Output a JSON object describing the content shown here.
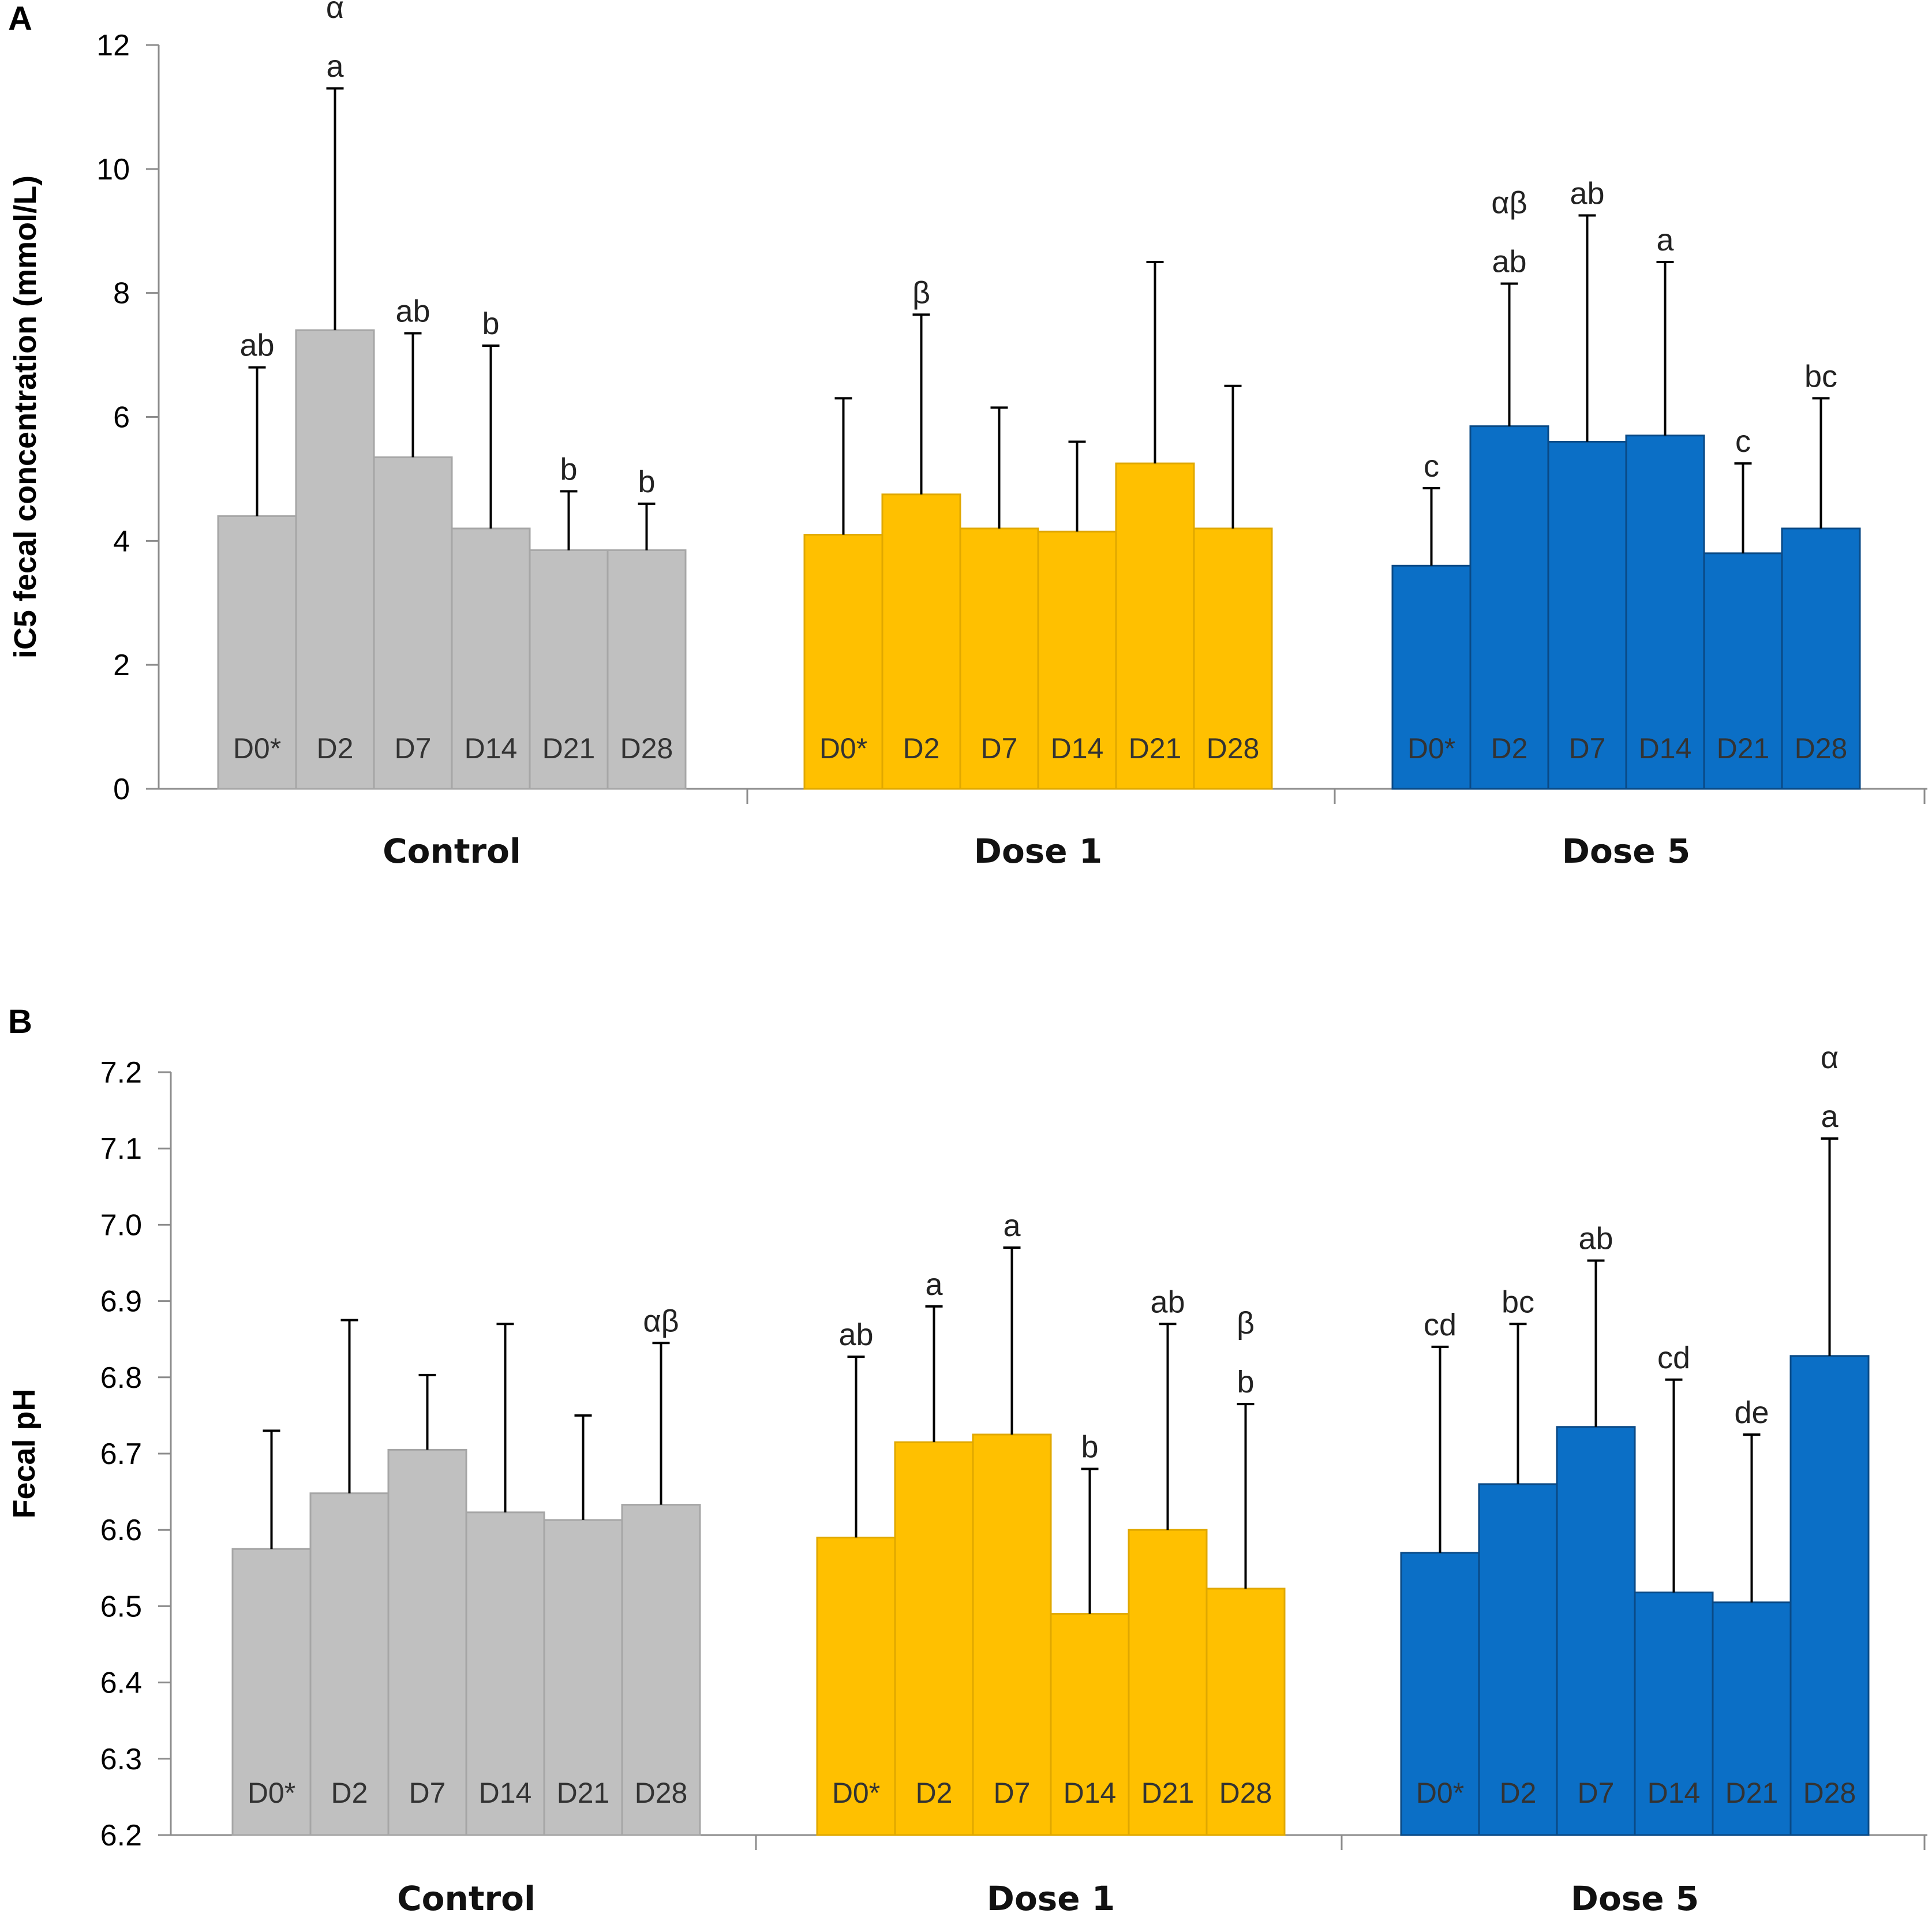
{
  "chart_data": [
    {
      "panel": "A",
      "type": "bar",
      "ylabel": "iC5 fecal concentration  (mmol/L)",
      "ylim": [
        0,
        12
      ],
      "yticks": [
        "0",
        "2",
        "4",
        "6",
        "8",
        "10",
        "12"
      ],
      "groups": [
        {
          "name": "Control",
          "color": "#c0c0c0",
          "stroke": "#a6a6a6",
          "bars": [
            {
              "label": "D0*",
              "value": 4.4,
              "error_top": 6.8,
              "letters": [
                "ab"
              ]
            },
            {
              "label": "D2",
              "value": 7.4,
              "error_top": 11.3,
              "letters": [
                "α",
                "a"
              ]
            },
            {
              "label": "D7",
              "value": 5.35,
              "error_top": 7.35,
              "letters": [
                "ab"
              ]
            },
            {
              "label": "D14",
              "value": 4.2,
              "error_top": 7.15,
              "letters": [
                "b"
              ]
            },
            {
              "label": "D21",
              "value": 3.85,
              "error_top": 4.8,
              "letters": [
                "b"
              ]
            },
            {
              "label": "D28",
              "value": 3.85,
              "error_top": 4.6,
              "letters": [
                "b"
              ]
            }
          ]
        },
        {
          "name": "Dose 1",
          "color": "#ffc000",
          "stroke": "#e0a800",
          "bars": [
            {
              "label": "D0*",
              "value": 4.1,
              "error_top": 6.3,
              "letters": []
            },
            {
              "label": "D2",
              "value": 4.75,
              "error_top": 7.65,
              "letters": [
                "β"
              ]
            },
            {
              "label": "D7",
              "value": 4.2,
              "error_top": 6.15,
              "letters": []
            },
            {
              "label": "D14",
              "value": 4.15,
              "error_top": 5.6,
              "letters": []
            },
            {
              "label": "D21",
              "value": 5.25,
              "error_top": 8.5,
              "letters": []
            },
            {
              "label": "D28",
              "value": 4.2,
              "error_top": 6.5,
              "letters": []
            }
          ]
        },
        {
          "name": "Dose 5",
          "color": "#0b6fc6",
          "stroke": "#0a4a86",
          "bars": [
            {
              "label": "D0*",
              "value": 3.6,
              "error_top": 4.85,
              "letters": [
                "c"
              ]
            },
            {
              "label": "D2",
              "value": 5.85,
              "error_top": 8.15,
              "letters": [
                "αβ",
                "ab"
              ]
            },
            {
              "label": "D7",
              "value": 5.6,
              "error_top": 9.25,
              "letters": [
                "ab"
              ]
            },
            {
              "label": "D14",
              "value": 5.7,
              "error_top": 8.5,
              "letters": [
                "a"
              ]
            },
            {
              "label": "D21",
              "value": 3.8,
              "error_top": 5.25,
              "letters": [
                "c"
              ]
            },
            {
              "label": "D28",
              "value": 4.2,
              "error_top": 6.3,
              "letters": [
                "bc"
              ]
            }
          ]
        }
      ]
    },
    {
      "panel": "B",
      "type": "bar",
      "ylabel": "Fecal pH",
      "ylim": [
        6.2,
        7.2
      ],
      "yticks": [
        "6.2",
        "6.3",
        "6.4",
        "6.5",
        "6.6",
        "6.7",
        "6.8",
        "6.9",
        "7.0",
        "7.1",
        "7.2"
      ],
      "groups": [
        {
          "name": "Control",
          "color": "#c0c0c0",
          "stroke": "#a6a6a6",
          "bars": [
            {
              "label": "D0*",
              "value": 6.575,
              "error_top": 6.73,
              "letters": []
            },
            {
              "label": "D2",
              "value": 6.648,
              "error_top": 6.875,
              "letters": []
            },
            {
              "label": "D7",
              "value": 6.705,
              "error_top": 6.803,
              "letters": []
            },
            {
              "label": "D14",
              "value": 6.623,
              "error_top": 6.87,
              "letters": []
            },
            {
              "label": "D21",
              "value": 6.613,
              "error_top": 6.75,
              "letters": []
            },
            {
              "label": "D28",
              "value": 6.633,
              "error_top": 6.845,
              "letters": [
                "αβ"
              ]
            }
          ]
        },
        {
          "name": "Dose 1",
          "color": "#ffc000",
          "stroke": "#e0a800",
          "bars": [
            {
              "label": "D0*",
              "value": 6.59,
              "error_top": 6.827,
              "letters": [
                "ab"
              ]
            },
            {
              "label": "D2",
              "value": 6.715,
              "error_top": 6.893,
              "letters": [
                "a"
              ]
            },
            {
              "label": "D7",
              "value": 6.725,
              "error_top": 6.97,
              "letters": [
                "a"
              ]
            },
            {
              "label": "D14",
              "value": 6.49,
              "error_top": 6.68,
              "letters": [
                "b"
              ]
            },
            {
              "label": "D21",
              "value": 6.6,
              "error_top": 6.87,
              "letters": [
                "ab"
              ]
            },
            {
              "label": "D28",
              "value": 6.523,
              "error_top": 6.765,
              "letters": [
                "β",
                "b"
              ]
            }
          ]
        },
        {
          "name": "Dose 5",
          "color": "#0b6fc6",
          "stroke": "#0a4a86",
          "bars": [
            {
              "label": "D0*",
              "value": 6.57,
              "error_top": 6.84,
              "letters": [
                "cd"
              ]
            },
            {
              "label": "D2",
              "value": 6.66,
              "error_top": 6.87,
              "letters": [
                "bc"
              ]
            },
            {
              "label": "D7",
              "value": 6.735,
              "error_top": 6.953,
              "letters": [
                "ab"
              ]
            },
            {
              "label": "D14",
              "value": 6.518,
              "error_top": 6.797,
              "letters": [
                "cd"
              ]
            },
            {
              "label": "D21",
              "value": 6.505,
              "error_top": 6.725,
              "letters": [
                "de"
              ]
            },
            {
              "label": "D28",
              "value": 6.828,
              "error_top": 7.113,
              "letters": [
                "α",
                "a"
              ]
            }
          ]
        }
      ]
    }
  ]
}
